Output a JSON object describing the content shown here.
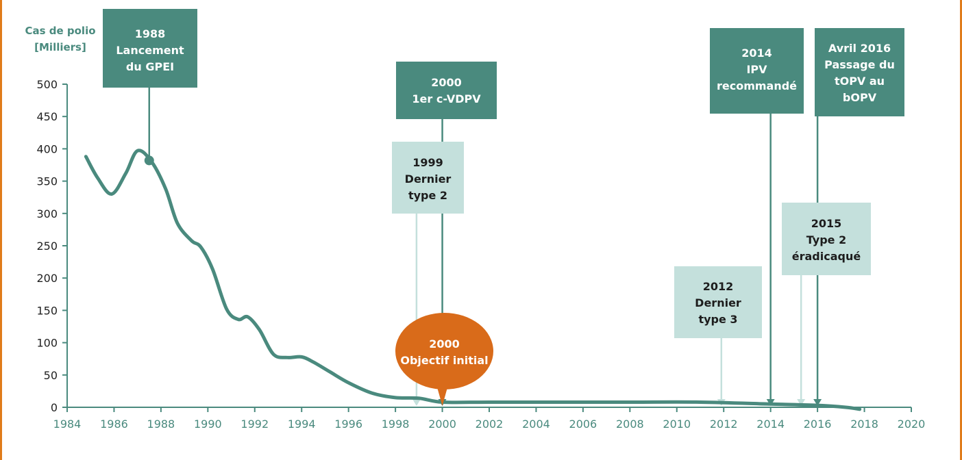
{
  "chart_data": {
    "type": "line",
    "ylabel_line1": "Cas de polio",
    "ylabel_line2": "[Milliers]",
    "xlim": [
      1984,
      2020
    ],
    "ylim": [
      0,
      500
    ],
    "xticks": [
      1984,
      1986,
      1988,
      1990,
      1992,
      1994,
      1996,
      1998,
      2000,
      2002,
      2004,
      2006,
      2008,
      2010,
      2012,
      2014,
      2016,
      2018,
      2020
    ],
    "yticks": [
      0,
      50,
      100,
      150,
      200,
      250,
      300,
      350,
      400,
      450,
      500
    ],
    "series": [
      {
        "color": "#4a8a7e",
        "x": [
          1984.8,
          1985.3,
          1985.9,
          1986.5,
          1987.0,
          1987.6,
          1988.2,
          1988.7,
          1989.3,
          1989.7,
          1990.2,
          1990.8,
          1991.3,
          1991.7,
          1992.2,
          1992.8,
          1993.4,
          1994.0,
          1994.5,
          1995.2,
          1996.0,
          1997.0,
          1998.0,
          1999.0,
          2000.0,
          2002,
          2005,
          2008,
          2011,
          2014,
          2016,
          2017.2,
          2017.8
        ],
        "values": [
          388,
          355,
          330,
          362,
          397,
          380,
          338,
          285,
          258,
          248,
          214,
          152,
          136,
          140,
          120,
          82,
          77,
          78,
          70,
          55,
          38,
          22,
          15,
          14,
          8,
          8,
          8,
          8,
          8,
          5,
          3,
          0,
          -3
        ]
      }
    ],
    "launch_marker": {
      "x": 1987.5,
      "y": 382
    },
    "annotations": [
      {
        "style": "dark",
        "lines": [
          "1988",
          "Lancement",
          "du GPEI"
        ],
        "pointer_x": 1987.5,
        "pointer_y": 382
      },
      {
        "style": "dark",
        "lines": [
          "2000",
          "1er c-VDPV"
        ],
        "pointer_x": 2000.0,
        "pointer_y": 0
      },
      {
        "style": "light",
        "lines": [
          "1999",
          "Dernier",
          "type 2"
        ],
        "pointer_x": 1998.9,
        "pointer_y": 0
      },
      {
        "style": "orange",
        "lines": [
          "2000",
          "Objectif initial"
        ],
        "pointer_x": 2000.0,
        "pointer_y": 0
      },
      {
        "style": "dark",
        "lines": [
          "2014",
          "IPV",
          "recommandé"
        ],
        "pointer_x": 2014.0,
        "pointer_y": 0
      },
      {
        "style": "dark",
        "lines": [
          "Avril 2016",
          "Passage du",
          "tOPV au",
          "bOPV"
        ],
        "pointer_x": 2016.0,
        "pointer_y": 0
      },
      {
        "style": "light",
        "lines": [
          "2015",
          "Type 2",
          "éradicaqué"
        ],
        "pointer_x": 2015.3,
        "pointer_y": 0
      },
      {
        "style": "light",
        "lines": [
          "2012",
          "Dernier",
          "type 3"
        ],
        "pointer_x": 2011.9,
        "pointer_y": 0
      }
    ]
  }
}
